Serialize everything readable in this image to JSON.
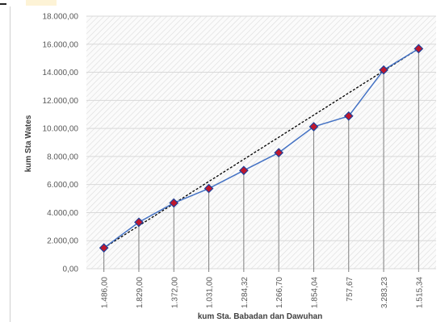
{
  "chart_data": {
    "type": "line",
    "xlabel": "kum Sta. Babadan dan Dawuhan",
    "ylabel": "kum Sta Wates",
    "categories": [
      "1.486,00",
      "1.829,00",
      "1.372,00",
      "1.031,00",
      "1.284,32",
      "1.266,70",
      "1.854,04",
      "757,67",
      "3.283,23",
      "1.515,34"
    ],
    "series": [
      {
        "values": [
          1486.0,
          3315.0,
          4687.0,
          5718.0,
          7002.32,
          8269.02,
          10123.06,
          10880.73,
          14163.96,
          15679.3
        ],
        "color": "#4472c4",
        "marker_fill": "#c0172c",
        "marker_edge": "#1f3f99"
      }
    ],
    "trendline": {
      "style": "dashed",
      "color": "#000000",
      "from": 1486.0,
      "to": 15679.3
    },
    "ylim": [
      0,
      18000
    ],
    "yticks": [
      "0,00",
      "2.000,00",
      "4.000,00",
      "6.000,00",
      "8.000,00",
      "10.000,00",
      "12.000,00",
      "14.000,00",
      "16.000,00",
      "18.000,00"
    ],
    "grid": true,
    "drop_lines": true,
    "plot_background": "hatched",
    "legend": "none"
  }
}
